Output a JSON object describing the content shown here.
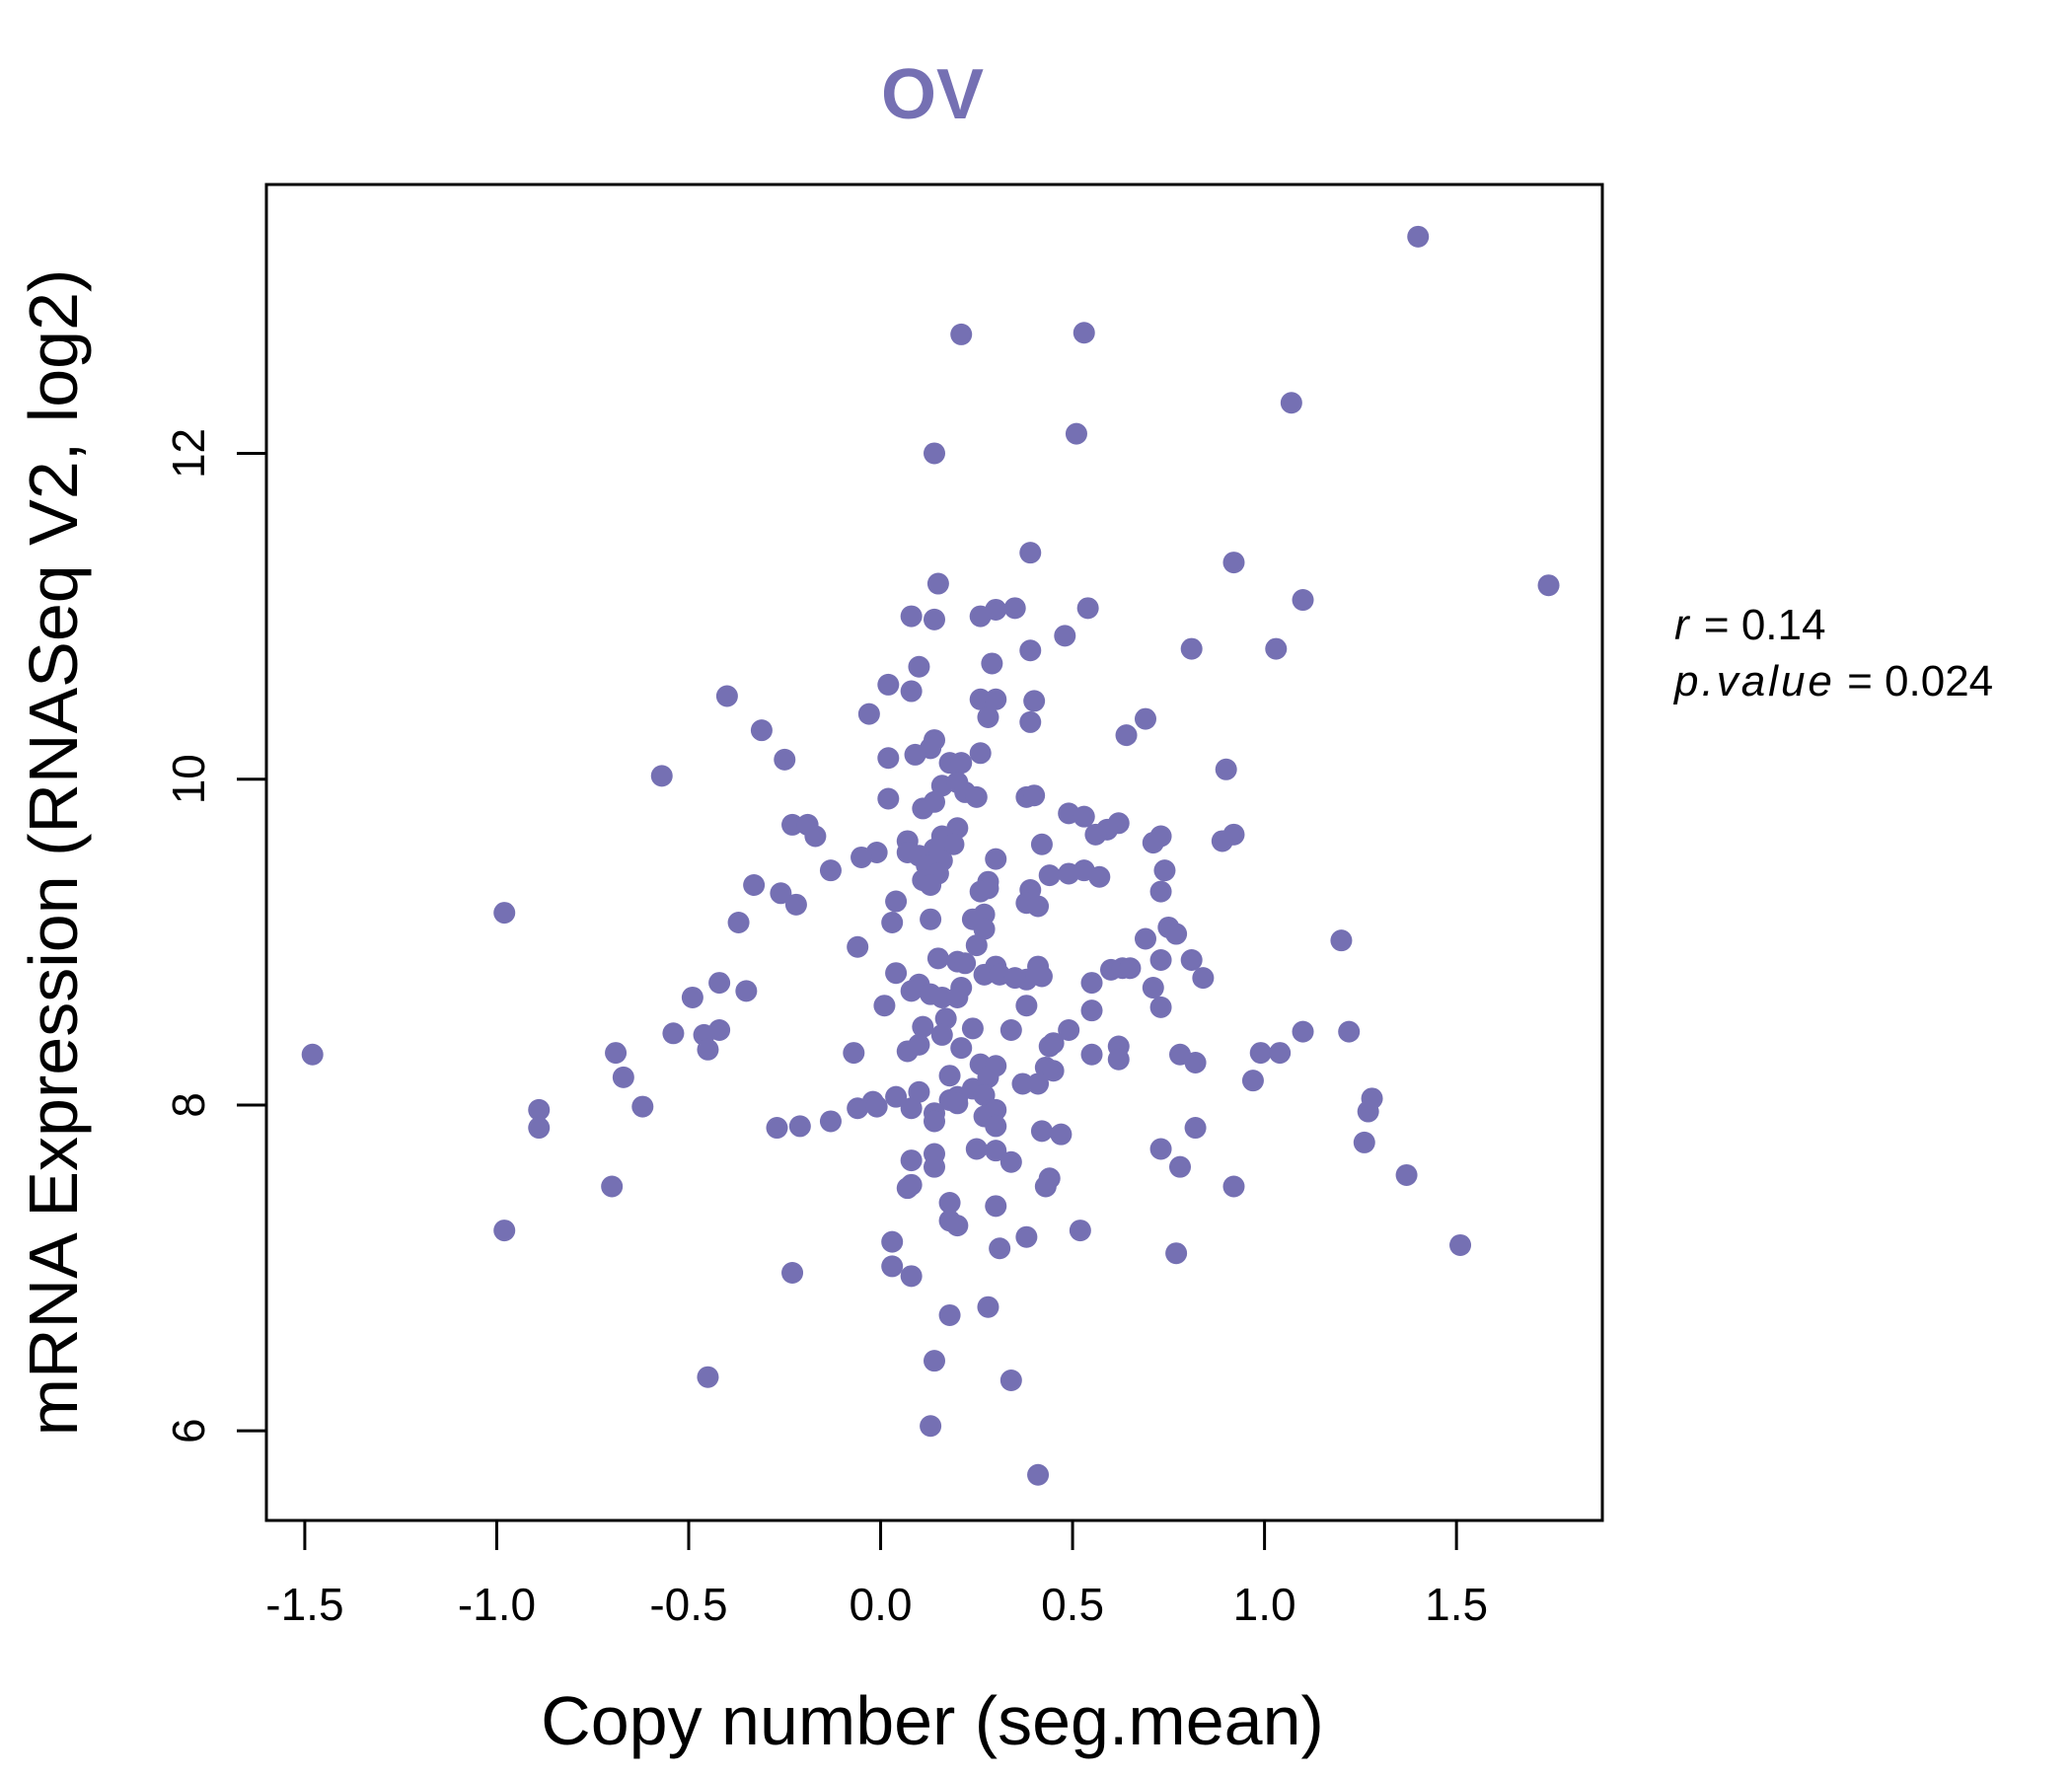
{
  "chart_data": {
    "type": "scatter",
    "title": "OV",
    "xlabel": "Copy number (seg.mean)",
    "ylabel": "mRNA Expression (RNASeq V2, log2)",
    "xlim": [
      -1.6,
      1.88
    ],
    "ylim": [
      5.45,
      13.65
    ],
    "xticks": [
      -1.5,
      -1.0,
      -0.5,
      0.0,
      0.5,
      1.0,
      1.5
    ],
    "xtick_labels": [
      "-1.5",
      "-1.0",
      "-0.5",
      "0.0",
      "0.5",
      "1.0",
      "1.5"
    ],
    "yticks": [
      6,
      8,
      10,
      12
    ],
    "ytick_labels": [
      "6",
      "8",
      "10",
      "12"
    ],
    "grid": false,
    "point_color": "#7570b3",
    "annotation": {
      "r_label": "r",
      "r_value": "0.14",
      "p_label": "p.value",
      "p_value": "0.024"
    },
    "points": [
      [
        1.4,
        13.33
      ],
      [
        0.21,
        12.73
      ],
      [
        0.53,
        12.74
      ],
      [
        1.07,
        12.31
      ],
      [
        0.51,
        12.12
      ],
      [
        0.14,
        12.0
      ],
      [
        1.74,
        11.19
      ],
      [
        0.92,
        11.33
      ],
      [
        0.39,
        11.39
      ],
      [
        1.1,
        11.1
      ],
      [
        0.15,
        11.2
      ],
      [
        0.54,
        11.05
      ],
      [
        0.35,
        11.05
      ],
      [
        0.3,
        11.04
      ],
      [
        0.26,
        11.0
      ],
      [
        0.08,
        11.0
      ],
      [
        0.14,
        10.98
      ],
      [
        0.48,
        10.88
      ],
      [
        0.81,
        10.8
      ],
      [
        1.03,
        10.8
      ],
      [
        0.39,
        10.79
      ],
      [
        0.29,
        10.71
      ],
      [
        0.1,
        10.69
      ],
      [
        0.02,
        10.58
      ],
      [
        0.08,
        10.54
      ],
      [
        -0.4,
        10.51
      ],
      [
        0.26,
        10.49
      ],
      [
        0.3,
        10.49
      ],
      [
        0.4,
        10.48
      ],
      [
        -0.03,
        10.4
      ],
      [
        0.28,
        10.38
      ],
      [
        0.69,
        10.37
      ],
      [
        0.39,
        10.35
      ],
      [
        -0.31,
        10.3
      ],
      [
        0.64,
        10.27
      ],
      [
        0.14,
        10.24
      ],
      [
        0.13,
        10.19
      ],
      [
        0.26,
        10.16
      ],
      [
        0.09,
        10.15
      ],
      [
        0.02,
        10.13
      ],
      [
        -0.25,
        10.12
      ],
      [
        0.18,
        10.1
      ],
      [
        0.21,
        10.1
      ],
      [
        0.9,
        10.06
      ],
      [
        -0.57,
        10.02
      ],
      [
        0.16,
        9.96
      ],
      [
        0.2,
        9.98
      ],
      [
        0.22,
        9.92
      ],
      [
        0.25,
        9.89
      ],
      [
        0.38,
        9.89
      ],
      [
        0.4,
        9.9
      ],
      [
        0.02,
        9.88
      ],
      [
        0.14,
        9.86
      ],
      [
        0.11,
        9.82
      ],
      [
        0.49,
        9.79
      ],
      [
        0.53,
        9.77
      ],
      [
        -0.23,
        9.72
      ],
      [
        -0.19,
        9.72
      ],
      [
        0.62,
        9.73
      ],
      [
        0.59,
        9.69
      ],
      [
        0.56,
        9.66
      ],
      [
        0.2,
        9.7
      ],
      [
        0.16,
        9.65
      ],
      [
        -0.17,
        9.65
      ],
      [
        0.92,
        9.66
      ],
      [
        0.73,
        9.65
      ],
      [
        0.71,
        9.61
      ],
      [
        0.89,
        9.62
      ],
      [
        0.07,
        9.62
      ],
      [
        0.19,
        9.6
      ],
      [
        0.42,
        9.6
      ],
      [
        0.14,
        9.57
      ],
      [
        0.07,
        9.55
      ],
      [
        -0.01,
        9.55
      ],
      [
        0.1,
        9.53
      ],
      [
        -0.05,
        9.52
      ],
      [
        0.3,
        9.51
      ],
      [
        0.16,
        9.5
      ],
      [
        0.12,
        9.47
      ],
      [
        0.53,
        9.44
      ],
      [
        0.74,
        9.44
      ],
      [
        -0.13,
        9.44
      ],
      [
        0.49,
        9.42
      ],
      [
        0.44,
        9.41
      ],
      [
        0.57,
        9.4
      ],
      [
        0.15,
        9.42
      ],
      [
        0.11,
        9.38
      ],
      [
        0.28,
        9.37
      ],
      [
        0.13,
        9.35
      ],
      [
        -0.33,
        9.35
      ],
      [
        0.28,
        9.33
      ],
      [
        0.39,
        9.32
      ],
      [
        0.26,
        9.31
      ],
      [
        0.73,
        9.31
      ],
      [
        -0.26,
        9.3
      ],
      [
        0.04,
        9.25
      ],
      [
        0.38,
        9.24
      ],
      [
        -0.22,
        9.23
      ],
      [
        0.41,
        9.22
      ],
      [
        -0.98,
        9.18
      ],
      [
        0.27,
        9.17
      ],
      [
        0.24,
        9.14
      ],
      [
        0.13,
        9.14
      ],
      [
        0.03,
        9.12
      ],
      [
        -0.37,
        9.12
      ],
      [
        0.75,
        9.09
      ],
      [
        0.27,
        9.08
      ],
      [
        0.77,
        9.05
      ],
      [
        0.69,
        9.02
      ],
      [
        1.2,
        9.01
      ],
      [
        0.25,
        8.98
      ],
      [
        -0.06,
        8.97
      ],
      [
        0.15,
        8.9
      ],
      [
        0.73,
        8.89
      ],
      [
        0.81,
        8.89
      ],
      [
        0.2,
        8.88
      ],
      [
        0.22,
        8.87
      ],
      [
        0.3,
        8.85
      ],
      [
        0.41,
        8.85
      ],
      [
        0.6,
        8.83
      ],
      [
        0.63,
        8.84
      ],
      [
        0.65,
        8.84
      ],
      [
        0.04,
        8.81
      ],
      [
        0.27,
        8.8
      ],
      [
        0.31,
        8.8
      ],
      [
        0.42,
        8.79
      ],
      [
        0.38,
        8.77
      ],
      [
        0.35,
        8.78
      ],
      [
        0.84,
        8.78
      ],
      [
        0.55,
        8.75
      ],
      [
        0.1,
        8.74
      ],
      [
        -0.42,
        8.75
      ],
      [
        0.21,
        8.72
      ],
      [
        0.71,
        8.72
      ],
      [
        0.08,
        8.7
      ],
      [
        -0.35,
        8.7
      ],
      [
        0.13,
        8.68
      ],
      [
        0.16,
        8.66
      ],
      [
        0.2,
        8.66
      ],
      [
        -0.49,
        8.66
      ],
      [
        0.01,
        8.61
      ],
      [
        0.38,
        8.61
      ],
      [
        0.73,
        8.6
      ],
      [
        0.55,
        8.58
      ],
      [
        0.17,
        8.53
      ],
      [
        0.11,
        8.48
      ],
      [
        0.24,
        8.47
      ],
      [
        0.34,
        8.46
      ],
      [
        0.49,
        8.46
      ],
      [
        -0.42,
        8.46
      ],
      [
        -0.54,
        8.44
      ],
      [
        -0.46,
        8.43
      ],
      [
        1.1,
        8.45
      ],
      [
        1.22,
        8.45
      ],
      [
        0.16,
        8.43
      ],
      [
        0.45,
        8.38
      ],
      [
        0.44,
        8.36
      ],
      [
        0.21,
        8.35
      ],
      [
        0.62,
        8.36
      ],
      [
        0.1,
        8.37
      ],
      [
        0.07,
        8.33
      ],
      [
        -0.45,
        8.34
      ],
      [
        -0.69,
        8.32
      ],
      [
        -0.07,
        8.32
      ],
      [
        0.99,
        8.32
      ],
      [
        1.04,
        8.32
      ],
      [
        0.78,
        8.31
      ],
      [
        0.55,
        8.31
      ],
      [
        0.82,
        8.26
      ],
      [
        0.62,
        8.28
      ],
      [
        0.26,
        8.25
      ],
      [
        0.3,
        8.24
      ],
      [
        0.43,
        8.23
      ],
      [
        0.45,
        8.21
      ],
      [
        0.18,
        8.18
      ],
      [
        0.28,
        8.17
      ],
      [
        -0.67,
        8.17
      ],
      [
        0.97,
        8.15
      ],
      [
        0.37,
        8.13
      ],
      [
        0.41,
        8.13
      ],
      [
        0.24,
        8.1
      ],
      [
        0.1,
        8.08
      ],
      [
        0.2,
        8.05
      ],
      [
        0.27,
        8.06
      ],
      [
        0.04,
        8.05
      ],
      [
        0.18,
        8.03
      ],
      [
        0.2,
        8.01
      ],
      [
        -0.02,
        8.02
      ],
      [
        1.28,
        8.04
      ],
      [
        -0.62,
        7.99
      ],
      [
        -0.06,
        7.98
      ],
      [
        -0.01,
        7.99
      ],
      [
        0.29,
        7.97
      ],
      [
        0.3,
        7.97
      ],
      [
        -0.89,
        7.97
      ],
      [
        1.27,
        7.96
      ],
      [
        0.14,
        7.95
      ],
      [
        0.08,
        7.98
      ],
      [
        0.27,
        7.93
      ],
      [
        -0.13,
        7.9
      ],
      [
        0.14,
        7.9
      ],
      [
        0.3,
        7.87
      ],
      [
        -0.21,
        7.87
      ],
      [
        -0.27,
        7.86
      ],
      [
        -0.89,
        7.86
      ],
      [
        0.82,
        7.86
      ],
      [
        0.42,
        7.84
      ],
      [
        0.47,
        7.82
      ],
      [
        1.26,
        7.77
      ],
      [
        0.25,
        7.73
      ],
      [
        0.3,
        7.72
      ],
      [
        0.14,
        7.7
      ],
      [
        0.73,
        7.73
      ],
      [
        0.08,
        7.66
      ],
      [
        0.34,
        7.65
      ],
      [
        0.78,
        7.62
      ],
      [
        0.14,
        7.62
      ],
      [
        1.37,
        7.57
      ],
      [
        0.44,
        7.55
      ],
      [
        0.08,
        7.51
      ],
      [
        0.43,
        7.5
      ],
      [
        0.92,
        7.5
      ],
      [
        0.07,
        7.49
      ],
      [
        -0.7,
        7.5
      ],
      [
        0.18,
        7.4
      ],
      [
        0.3,
        7.38
      ],
      [
        0.18,
        7.29
      ],
      [
        0.2,
        7.26
      ],
      [
        -0.98,
        7.23
      ],
      [
        0.52,
        7.23
      ],
      [
        0.38,
        7.19
      ],
      [
        0.03,
        7.16
      ],
      [
        1.51,
        7.14
      ],
      [
        0.31,
        7.12
      ],
      [
        0.77,
        7.09
      ],
      [
        0.03,
        7.01
      ],
      [
        -0.23,
        6.97
      ],
      [
        0.08,
        6.95
      ],
      [
        0.28,
        6.76
      ],
      [
        0.18,
        6.71
      ],
      [
        0.14,
        6.43
      ],
      [
        -0.45,
        6.33
      ],
      [
        0.34,
        6.31
      ],
      [
        0.13,
        6.03
      ],
      [
        0.41,
        5.73
      ],
      [
        -1.48,
        8.31
      ]
    ]
  }
}
